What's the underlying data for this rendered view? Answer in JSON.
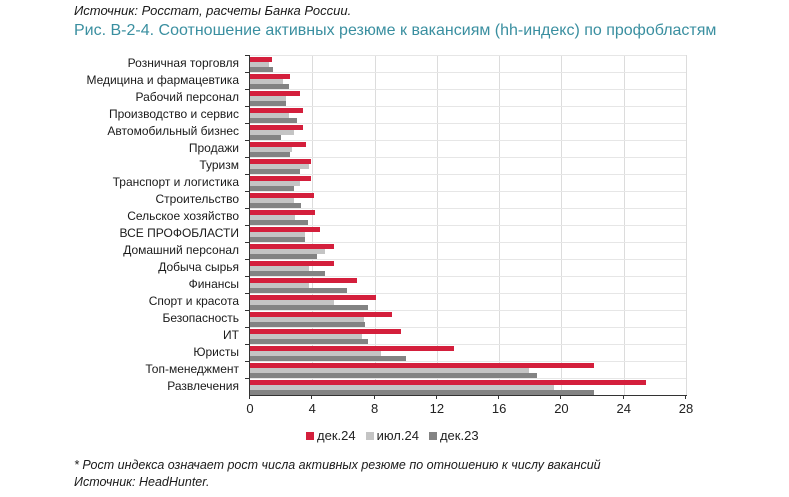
{
  "header": {
    "source": "Источник: Росстат, расчеты Банка России.",
    "title": "Рис. В-2-4. Соотношение активных резюме к вакансиям (hh-индекс) по профобластям"
  },
  "footer": {
    "note": "* Рост индекса означает рост числа активных резюме по отношению к числу вакансий",
    "source": "Источник: HeadHunter."
  },
  "colors": {
    "dec24": "#d41f3c",
    "jul24": "#c4c4c4",
    "dec23": "#838383",
    "title": "#3a8fa0"
  },
  "chart_data": {
    "type": "bar",
    "orientation": "horizontal",
    "title": "Рис. В-2-4. Соотношение активных резюме к вакансиям (hh-индекс) по профобластям",
    "xlabel": "",
    "ylabel": "",
    "xlim": [
      0,
      28
    ],
    "xticks": [
      "0",
      "4",
      "8",
      "12",
      "16",
      "20",
      "24",
      "28"
    ],
    "grid": true,
    "legend_position": "bottom",
    "categories": [
      "Розничная торговля",
      "Медицина и фармацевтика",
      "Рабочий персонал",
      "Производство и сервис",
      "Автомобильный бизнес",
      "Продажи",
      "Туризм",
      "Транспорт и логистика",
      "Строительство",
      "Сельское хозяйство",
      "ВСЕ ПРОФОБЛАСТИ",
      "Домашний персонал",
      "Добыча сырья",
      "Финансы",
      "Спорт и красота",
      "Безопасность",
      "ИТ",
      "Юристы",
      "Топ-менеджмент",
      "Развлечения"
    ],
    "series": [
      {
        "name": "дек.24",
        "key": "dec24",
        "values": [
          1.4,
          2.6,
          3.2,
          3.4,
          3.4,
          3.6,
          3.9,
          3.9,
          4.1,
          4.2,
          4.5,
          5.4,
          5.4,
          6.9,
          8.1,
          9.1,
          9.7,
          13.1,
          22.1,
          25.4
        ]
      },
      {
        "name": "июл.24",
        "key": "jul24",
        "values": [
          1.2,
          2.1,
          2.3,
          2.5,
          2.8,
          2.7,
          3.8,
          3.2,
          2.8,
          2.9,
          3.5,
          4.8,
          3.8,
          3.8,
          5.4,
          7.3,
          7.2,
          8.4,
          17.9,
          19.5
        ]
      },
      {
        "name": "дек.23",
        "key": "dec23",
        "values": [
          1.5,
          2.5,
          2.3,
          3.0,
          2.0,
          2.6,
          3.2,
          2.8,
          3.3,
          3.7,
          3.5,
          4.3,
          4.8,
          6.2,
          7.6,
          7.4,
          7.6,
          10.0,
          18.4,
          22.1
        ]
      }
    ]
  }
}
